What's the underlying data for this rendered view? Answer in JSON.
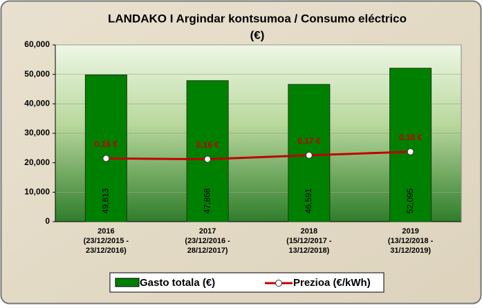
{
  "chart_data": {
    "type": "bar_line",
    "title": [
      "LANDAKO I Argindar kontsumoa / Consumo eléctrico",
      "(€)"
    ],
    "categories": [
      [
        "2016",
        "(23/12/2015 -",
        "23/12/2016)"
      ],
      [
        "2017",
        "(23/12/2016 -",
        "28/12/2017)"
      ],
      [
        "2018",
        "(15/12/2017 -",
        "13/12/2018)"
      ],
      [
        "2019",
        "(13/12/2018 -",
        "31/12/2019)"
      ]
    ],
    "series": [
      {
        "name": "Gasto totala (€)",
        "color": "#008000",
        "values": [
          49813,
          47868,
          46591,
          52095
        ],
        "value_labels": [
          "49,813",
          "47,868",
          "46,591",
          "52,095"
        ]
      },
      {
        "name": "Prezioa (€/kWh)",
        "color": "#c00000",
        "axis": "y2",
        "values": [
          0.161,
          0.159,
          0.169,
          0.178
        ],
        "value_labels": [
          "0.16 €",
          "0.16 €",
          "0.17 €",
          "0.18 €"
        ]
      }
    ],
    "ylim": [
      0,
      60000
    ],
    "yticks": [
      0,
      {
        "value": 10000,
        "label": "10,000"
      },
      {
        "value": 20000,
        "label": "20,000"
      },
      {
        "value": 30000,
        "label": "30,000"
      },
      {
        "value": 40000,
        "label": "40,000"
      },
      {
        "value": 50000,
        "label": "50,000"
      },
      {
        "value": 60000,
        "label": "60,000"
      }
    ],
    "y2lim": [
      0,
      0.45
    ],
    "grid": true,
    "legend": "bottom"
  }
}
